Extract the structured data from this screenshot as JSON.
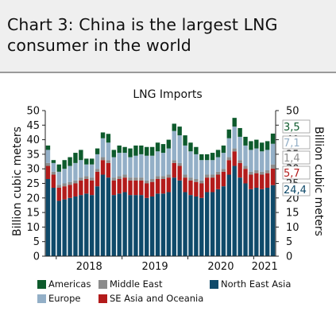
{
  "header": {
    "title": "Chart 3: China is the largest LNG consumer in the world"
  },
  "chart_data": {
    "type": "bar",
    "stacked": true,
    "title": "LNG Imports",
    "ylabel_left": "Billion cubic meters",
    "ylabel_right": "Billion cubic meters",
    "ylim": [
      0,
      50
    ],
    "yticks": [
      "0",
      "5",
      "10",
      "15",
      "20",
      "25",
      "30",
      "35",
      "40",
      "45",
      "50"
    ],
    "x_tick_labels": [
      "2018",
      "2019",
      "2020",
      "2021"
    ],
    "grid": false,
    "legend_position": "bottom",
    "colors": {
      "North East Asia": "#0f4a6a",
      "SE Asia and Oceania": "#b31b1b",
      "Middle East": "#8c8c8c",
      "Europe": "#93afc7",
      "Americas": "#0d5a2c"
    },
    "series": [
      {
        "name": "North East Asia",
        "values": [
          26.5,
          23.5,
          19,
          19.5,
          20,
          20.5,
          21,
          21.5,
          21,
          24,
          28,
          27,
          21,
          21.5,
          22,
          21,
          21,
          21,
          20,
          20.5,
          21.5,
          21.5,
          22,
          27,
          26,
          22,
          21,
          20.5,
          20,
          22,
          22,
          23,
          24,
          28,
          31,
          27,
          25,
          23,
          23.5,
          23,
          23.5,
          24.4
        ]
      },
      {
        "name": "SE Asia and Oceania",
        "values": [
          4.5,
          4.5,
          4.5,
          4.5,
          4.5,
          4.5,
          5,
          5,
          5,
          5,
          5,
          5,
          5,
          5,
          5,
          5,
          5,
          5,
          5,
          5,
          5,
          5,
          5,
          5,
          5,
          5,
          5,
          5,
          5,
          5,
          5,
          5,
          5,
          5,
          5,
          5,
          5,
          5,
          5,
          5,
          5,
          5.7
        ]
      },
      {
        "name": "Middle East",
        "values": [
          1,
          1,
          1,
          1,
          1,
          1,
          1,
          1,
          1,
          1,
          1,
          1,
          1,
          1,
          1,
          1,
          1,
          1,
          1,
          1,
          1,
          1,
          1,
          1,
          1,
          1,
          1,
          1,
          1,
          1,
          1,
          1,
          1,
          1,
          1,
          1,
          1,
          1,
          1,
          1,
          1,
          1.4
        ]
      },
      {
        "name": "Europe",
        "values": [
          4.5,
          3,
          4.5,
          5,
          5.5,
          6,
          6,
          4,
          4.5,
          5,
          6.5,
          6,
          7,
          8,
          7.5,
          7,
          7.5,
          8,
          8.5,
          8,
          8.5,
          8,
          9,
          10,
          9.5,
          10,
          9,
          8.5,
          7,
          5,
          5,
          5,
          5.5,
          6.5,
          7.5,
          8,
          7,
          7.5,
          7.5,
          7,
          7,
          7.1
        ]
      },
      {
        "name": "Americas",
        "values": [
          1.5,
          1,
          2.5,
          3,
          3,
          3.5,
          3.5,
          2,
          2,
          2,
          2,
          3,
          2.5,
          2.5,
          2,
          3,
          3.5,
          3,
          3,
          3,
          3,
          3,
          3,
          2.5,
          3,
          3.5,
          3,
          2.5,
          2,
          2,
          2.5,
          2.5,
          2.5,
          3,
          3,
          3,
          3,
          3,
          3,
          3,
          3,
          3.5
        ]
      }
    ],
    "end_labels": [
      "3,5",
      "7,1",
      "1,4",
      "5,7",
      "24,4"
    ],
    "end_label_colors": [
      "#0d5a2c",
      "#93afc7",
      "#8c8c8c",
      "#b31b1b",
      "#0f4a6a"
    ]
  },
  "legend": {
    "items": [
      {
        "label": "Americas",
        "color": "#0d5a2c"
      },
      {
        "label": "Middle East",
        "color": "#8c8c8c"
      },
      {
        "label": "North East Asia",
        "color": "#0f4a6a"
      },
      {
        "label": "Europe",
        "color": "#93afc7"
      },
      {
        "label": "SE Asia and Oceania",
        "color": "#b31b1b"
      }
    ]
  }
}
